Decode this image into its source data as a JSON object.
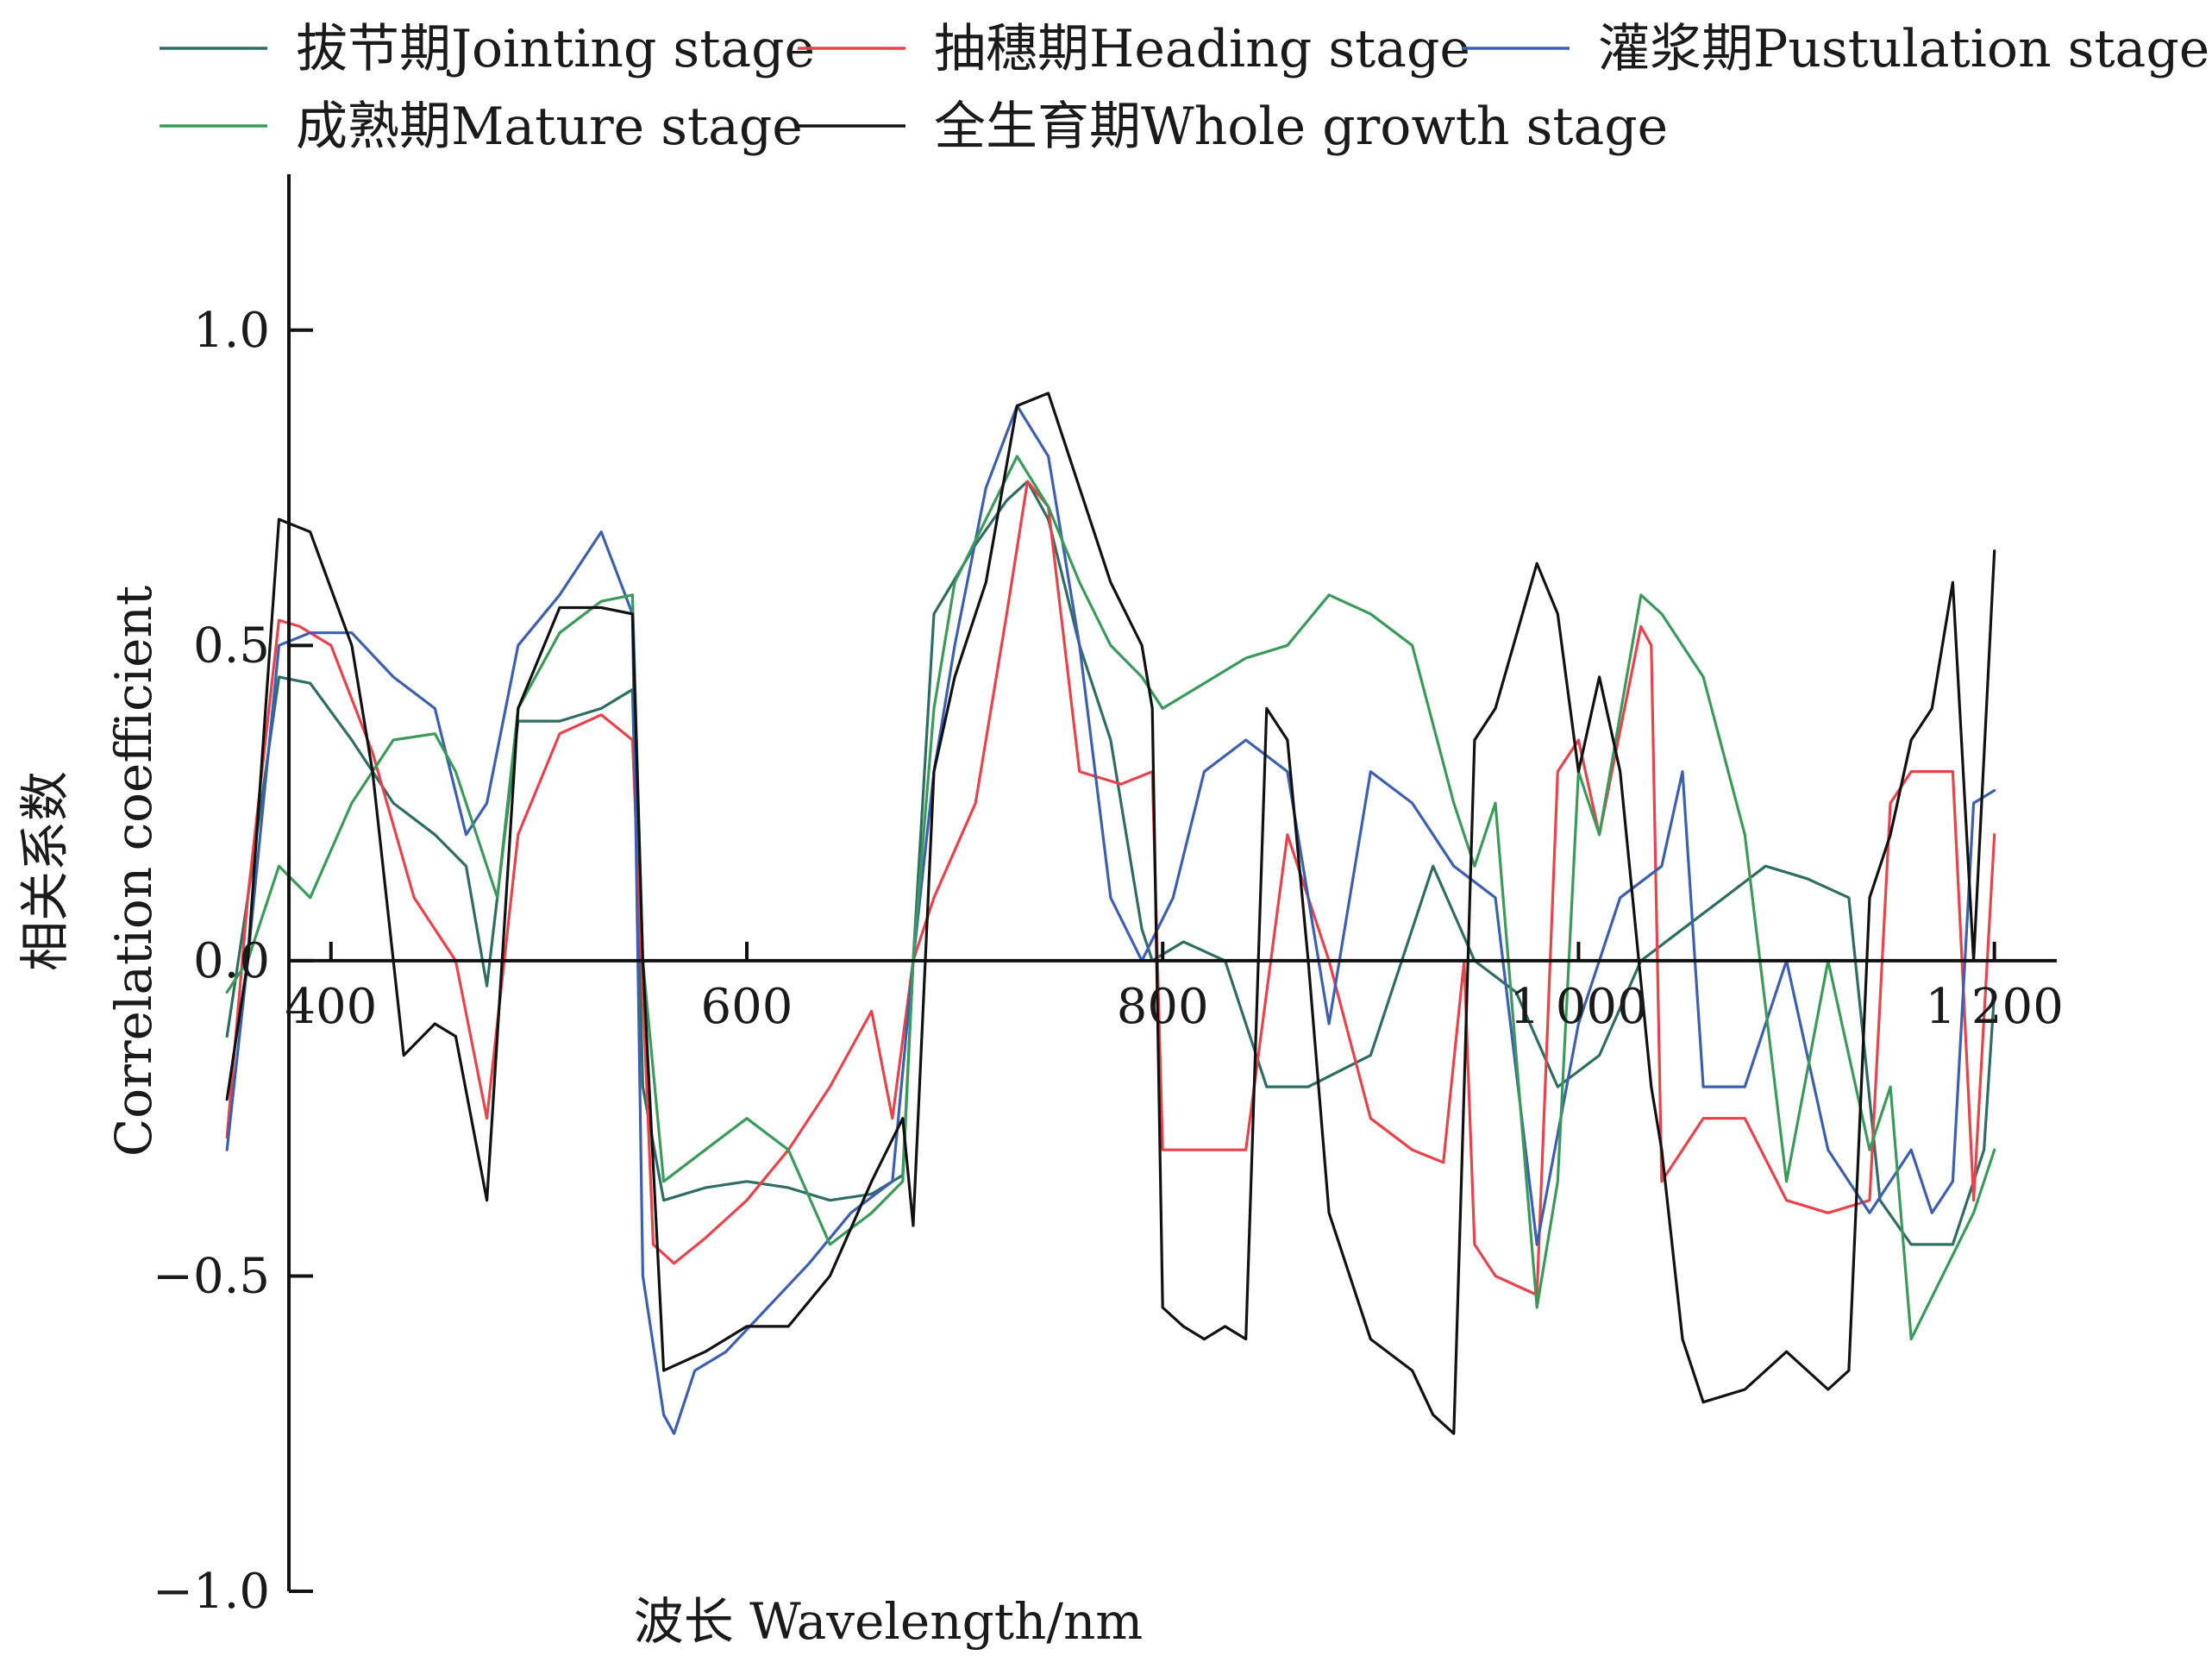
{
  "chart_data": {
    "type": "line",
    "title": "",
    "xlabel": "波长 Wavelength/nm",
    "ylabel_cn": "相关系数",
    "ylabel_en": "Correlation coefficient",
    "xlim": [
      330,
      1230
    ],
    "ylim": [
      -1.0,
      1.25
    ],
    "x_ticks": [
      {
        "value": 400,
        "label": "400"
      },
      {
        "value": 600,
        "label": "600"
      },
      {
        "value": 800,
        "label": "800"
      },
      {
        "value": 1000,
        "label": "1 000"
      },
      {
        "value": 1200,
        "label": "1 200"
      }
    ],
    "y_ticks": [
      {
        "value": 1.0,
        "label": "1.0"
      },
      {
        "value": 0.5,
        "label": "0.5"
      },
      {
        "value": 0.0,
        "label": "0.0"
      },
      {
        "value": -0.5,
        "label": "−0.5"
      },
      {
        "value": -1.0,
        "label": "−1.0"
      }
    ],
    "grid": false,
    "legend_position": "top",
    "series": [
      {
        "name": "拔节期Jointing stage",
        "color": "#2e6e62",
        "x": [
          350,
          360,
          375,
          390,
          410,
          430,
          450,
          465,
          475,
          490,
          510,
          530,
          545,
          550,
          560,
          580,
          600,
          620,
          640,
          660,
          675,
          680,
          690,
          710,
          725,
          735,
          745,
          760,
          775,
          790,
          795,
          810,
          830,
          850,
          870,
          900,
          930,
          950,
          970,
          990,
          1010,
          1030,
          1050,
          1070,
          1090,
          1110,
          1130,
          1145,
          1160,
          1180,
          1195,
          1200
        ],
        "y": [
          -0.12,
          0.1,
          0.45,
          0.44,
          0.35,
          0.25,
          0.2,
          0.15,
          -0.04,
          0.38,
          0.38,
          0.4,
          0.43,
          -0.2,
          -0.38,
          -0.36,
          -0.35,
          -0.36,
          -0.38,
          -0.37,
          -0.34,
          0.0,
          0.55,
          0.66,
          0.73,
          0.76,
          0.7,
          0.5,
          0.35,
          0.05,
          0.0,
          0.03,
          0.0,
          -0.2,
          -0.2,
          -0.15,
          0.15,
          0.0,
          -0.05,
          -0.2,
          -0.15,
          0.0,
          0.05,
          0.1,
          0.15,
          0.13,
          0.1,
          -0.38,
          -0.45,
          -0.45,
          -0.3,
          -0.05
        ]
      },
      {
        "name": "抽穗期Heading stage",
        "color": "#e8424a",
        "x": [
          350,
          360,
          375,
          385,
          400,
          420,
          440,
          460,
          475,
          490,
          510,
          530,
          545,
          555,
          565,
          580,
          600,
          620,
          640,
          660,
          670,
          680,
          690,
          710,
          725,
          735,
          745,
          760,
          780,
          795,
          800,
          820,
          840,
          860,
          880,
          900,
          920,
          935,
          945,
          950,
          960,
          980,
          990,
          1000,
          1010,
          1030,
          1035,
          1040,
          1060,
          1080,
          1100,
          1120,
          1140,
          1150,
          1160,
          1180,
          1190,
          1200
        ],
        "y": [
          -0.28,
          0.1,
          0.54,
          0.53,
          0.5,
          0.33,
          0.1,
          0.0,
          -0.25,
          0.2,
          0.36,
          0.39,
          0.35,
          -0.45,
          -0.48,
          -0.44,
          -0.38,
          -0.3,
          -0.2,
          -0.08,
          -0.25,
          0.0,
          0.1,
          0.25,
          0.55,
          0.76,
          0.72,
          0.3,
          0.28,
          0.3,
          -0.3,
          -0.3,
          -0.3,
          0.2,
          0.0,
          -0.25,
          -0.3,
          -0.32,
          0.0,
          -0.45,
          -0.5,
          -0.53,
          0.3,
          0.35,
          0.2,
          0.53,
          0.5,
          -0.35,
          -0.25,
          -0.25,
          -0.38,
          -0.4,
          -0.38,
          0.25,
          0.3,
          0.3,
          -0.38,
          0.2
        ]
      },
      {
        "name": "灌浆期Pustulation stage",
        "color": "#3d5fb0",
        "x": [
          350,
          360,
          375,
          390,
          410,
          430,
          450,
          465,
          475,
          490,
          510,
          530,
          545,
          550,
          560,
          565,
          575,
          590,
          610,
          630,
          650,
          670,
          680,
          690,
          700,
          715,
          730,
          745,
          760,
          775,
          790,
          805,
          820,
          840,
          860,
          880,
          900,
          920,
          940,
          960,
          980,
          1000,
          1020,
          1040,
          1050,
          1060,
          1080,
          1100,
          1120,
          1140,
          1150,
          1160,
          1170,
          1180,
          1190,
          1200
        ],
        "y": [
          -0.3,
          0.0,
          0.5,
          0.52,
          0.52,
          0.45,
          0.4,
          0.2,
          0.25,
          0.5,
          0.58,
          0.68,
          0.55,
          -0.5,
          -0.72,
          -0.75,
          -0.65,
          -0.62,
          -0.55,
          -0.48,
          -0.4,
          -0.35,
          0.0,
          0.3,
          0.5,
          0.75,
          0.88,
          0.8,
          0.5,
          0.1,
          0.0,
          0.1,
          0.3,
          0.35,
          0.3,
          -0.1,
          0.3,
          0.25,
          0.15,
          0.1,
          -0.45,
          -0.1,
          0.1,
          0.15,
          0.3,
          -0.2,
          -0.2,
          0.0,
          -0.3,
          -0.4,
          -0.35,
          -0.3,
          -0.4,
          -0.35,
          0.25,
          0.27
        ]
      },
      {
        "name": "成熟期Mature stage",
        "color": "#3a9a5a",
        "x": [
          350,
          360,
          375,
          390,
          410,
          430,
          450,
          460,
          470,
          480,
          490,
          510,
          530,
          545,
          550,
          560,
          580,
          600,
          620,
          640,
          660,
          675,
          680,
          690,
          700,
          715,
          730,
          745,
          760,
          775,
          790,
          800,
          815,
          840,
          860,
          880,
          900,
          920,
          940,
          950,
          960,
          980,
          990,
          1000,
          1010,
          1030,
          1040,
          1060,
          1080,
          1100,
          1120,
          1140,
          1150,
          1160,
          1175,
          1190,
          1200
        ],
        "y": [
          -0.05,
          0.0,
          0.15,
          0.1,
          0.25,
          0.35,
          0.36,
          0.3,
          0.2,
          0.1,
          0.4,
          0.52,
          0.57,
          0.58,
          0.0,
          -0.35,
          -0.3,
          -0.25,
          -0.3,
          -0.45,
          -0.4,
          -0.35,
          0.0,
          0.4,
          0.6,
          0.7,
          0.8,
          0.72,
          0.6,
          0.5,
          0.45,
          0.4,
          0.43,
          0.48,
          0.5,
          0.58,
          0.55,
          0.5,
          0.25,
          0.15,
          0.25,
          -0.55,
          -0.35,
          0.3,
          0.2,
          0.58,
          0.55,
          0.45,
          0.2,
          -0.35,
          0.0,
          -0.3,
          -0.2,
          -0.6,
          -0.5,
          -0.4,
          -0.3
        ]
      },
      {
        "name": "全生育期Whole growth stage",
        "color": "#111111",
        "x": [
          350,
          360,
          375,
          390,
          410,
          420,
          435,
          450,
          460,
          475,
          490,
          510,
          530,
          545,
          550,
          560,
          580,
          600,
          620,
          640,
          660,
          675,
          680,
          690,
          700,
          715,
          730,
          745,
          760,
          775,
          790,
          795,
          800,
          810,
          820,
          830,
          840,
          850,
          860,
          870,
          880,
          900,
          920,
          930,
          940,
          950,
          960,
          980,
          990,
          1000,
          1010,
          1020,
          1035,
          1040,
          1050,
          1060,
          1080,
          1100,
          1120,
          1130,
          1140,
          1150,
          1160,
          1170,
          1180,
          1190,
          1200
        ],
        "y": [
          -0.22,
          0.0,
          0.7,
          0.68,
          0.5,
          0.3,
          -0.15,
          -0.1,
          -0.12,
          -0.38,
          0.4,
          0.56,
          0.56,
          0.55,
          0.0,
          -0.65,
          -0.62,
          -0.58,
          -0.58,
          -0.5,
          -0.35,
          -0.25,
          -0.42,
          0.3,
          0.45,
          0.6,
          0.88,
          0.9,
          0.75,
          0.6,
          0.5,
          0.4,
          -0.55,
          -0.58,
          -0.6,
          -0.58,
          -0.6,
          0.4,
          0.35,
          0.0,
          -0.4,
          -0.6,
          -0.65,
          -0.72,
          -0.75,
          0.35,
          0.4,
          0.63,
          0.55,
          0.3,
          0.45,
          0.3,
          -0.2,
          -0.3,
          -0.6,
          -0.7,
          -0.68,
          -0.62,
          -0.68,
          -0.65,
          0.1,
          0.2,
          0.35,
          0.4,
          0.6,
          0.0,
          0.65
        ]
      }
    ]
  }
}
